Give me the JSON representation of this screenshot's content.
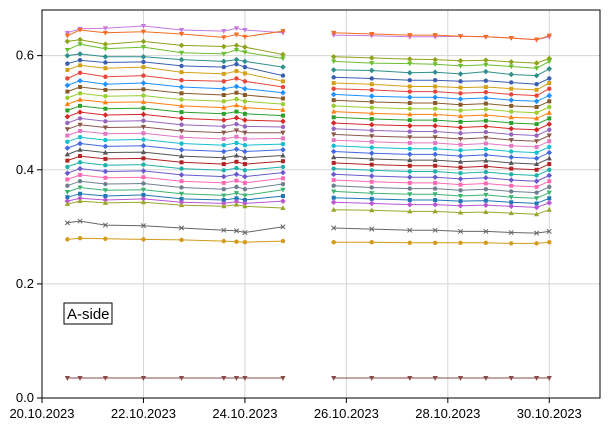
{
  "chart_data": {
    "type": "line",
    "title": "",
    "xlabel": "",
    "ylabel": "",
    "xlim": [
      "2023-10-20",
      "2023-10-31"
    ],
    "ylim": [
      0.0,
      0.68
    ],
    "grid": true,
    "x_ticks": [
      "20.10.2023",
      "22.10.2023",
      "24.10.2023",
      "26.10.2023",
      "28.10.2023",
      "30.10.2023"
    ],
    "y_ticks": [
      "0.0",
      "0.2",
      "0.4",
      "0.6"
    ],
    "annotation": "A-side",
    "x_dates": [
      "2023-10-20 12:00",
      "2023-10-20 18:00",
      "2023-10-21 06:00",
      "2023-10-22 00:00",
      "2023-10-22 18:00",
      "2023-10-23 14:00",
      "2023-10-23 20:00",
      "2023-10-24 00:00",
      "2023-10-24 18:00",
      "2023-10-25 18:00",
      "2023-10-26 12:00",
      "2023-10-27 06:00",
      "2023-10-27 18:00",
      "2023-10-28 06:00",
      "2023-10-28 18:00",
      "2023-10-29 06:00",
      "2023-10-29 18:00",
      "2023-10-30 00:00"
    ],
    "segments": [
      [
        0,
        8
      ],
      [
        9,
        17
      ]
    ],
    "series": [
      {
        "values": [
          0.64,
          0.647,
          0.648,
          0.652,
          0.645,
          0.643,
          0.648,
          0.645,
          0.64,
          0.636,
          0.635,
          0.633,
          0.633,
          0.634,
          0.633,
          0.631,
          0.628,
          0.633
        ]
      },
      {
        "values": [
          0.635,
          0.645,
          0.64,
          0.642,
          0.638,
          0.632,
          0.637,
          0.633,
          0.643,
          0.64,
          0.638,
          0.636,
          0.636,
          0.634,
          0.633,
          0.631,
          0.628,
          0.635
        ]
      },
      {
        "values": [
          0.625,
          0.628,
          0.62,
          0.625,
          0.618,
          0.616,
          0.618,
          0.615,
          0.602,
          0.598,
          0.596,
          0.594,
          0.593,
          0.591,
          0.592,
          0.589,
          0.587,
          0.595
        ]
      },
      {
        "values": [
          0.61,
          0.62,
          0.612,
          0.615,
          0.605,
          0.603,
          0.61,
          0.606,
          0.595,
          0.59,
          0.587,
          0.586,
          0.585,
          0.582,
          0.584,
          0.581,
          0.578,
          0.59
        ]
      },
      {
        "values": [
          0.6,
          0.603,
          0.598,
          0.598,
          0.593,
          0.59,
          0.593,
          0.59,
          0.58,
          0.575,
          0.574,
          0.57,
          0.571,
          0.568,
          0.572,
          0.567,
          0.565,
          0.577
        ]
      },
      {
        "values": [
          0.586,
          0.592,
          0.588,
          0.589,
          0.582,
          0.58,
          0.585,
          0.58,
          0.565,
          0.562,
          0.56,
          0.557,
          0.557,
          0.555,
          0.556,
          0.553,
          0.55,
          0.56
        ]
      },
      {
        "values": [
          0.575,
          0.583,
          0.578,
          0.58,
          0.571,
          0.568,
          0.573,
          0.569,
          0.555,
          0.552,
          0.55,
          0.546,
          0.546,
          0.544,
          0.545,
          0.542,
          0.54,
          0.552
        ]
      },
      {
        "values": [
          0.56,
          0.57,
          0.563,
          0.565,
          0.557,
          0.555,
          0.56,
          0.555,
          0.545,
          0.542,
          0.54,
          0.537,
          0.537,
          0.534,
          0.536,
          0.532,
          0.53,
          0.542
        ]
      },
      {
        "values": [
          0.548,
          0.556,
          0.55,
          0.552,
          0.545,
          0.542,
          0.546,
          0.542,
          0.535,
          0.532,
          0.529,
          0.527,
          0.527,
          0.524,
          0.526,
          0.522,
          0.52,
          0.53
        ]
      },
      {
        "values": [
          0.537,
          0.545,
          0.54,
          0.541,
          0.534,
          0.531,
          0.535,
          0.531,
          0.525,
          0.522,
          0.519,
          0.517,
          0.517,
          0.514,
          0.516,
          0.512,
          0.51,
          0.52
        ]
      },
      {
        "values": [
          0.526,
          0.534,
          0.529,
          0.53,
          0.523,
          0.52,
          0.524,
          0.52,
          0.515,
          0.512,
          0.509,
          0.507,
          0.507,
          0.504,
          0.506,
          0.502,
          0.5,
          0.51
        ]
      },
      {
        "values": [
          0.515,
          0.523,
          0.518,
          0.519,
          0.512,
          0.509,
          0.513,
          0.509,
          0.505,
          0.502,
          0.499,
          0.497,
          0.497,
          0.494,
          0.496,
          0.492,
          0.49,
          0.5
        ]
      },
      {
        "values": [
          0.504,
          0.512,
          0.507,
          0.508,
          0.501,
          0.498,
          0.502,
          0.498,
          0.495,
          0.492,
          0.489,
          0.487,
          0.487,
          0.484,
          0.486,
          0.482,
          0.48,
          0.49
        ]
      },
      {
        "values": [
          0.493,
          0.501,
          0.496,
          0.497,
          0.49,
          0.487,
          0.491,
          0.487,
          0.485,
          0.482,
          0.479,
          0.477,
          0.477,
          0.474,
          0.476,
          0.472,
          0.47,
          0.48
        ]
      },
      {
        "values": [
          0.482,
          0.49,
          0.485,
          0.486,
          0.479,
          0.476,
          0.48,
          0.476,
          0.475,
          0.472,
          0.469,
          0.467,
          0.467,
          0.464,
          0.466,
          0.462,
          0.46,
          0.47
        ]
      },
      {
        "values": [
          0.471,
          0.479,
          0.474,
          0.475,
          0.468,
          0.465,
          0.469,
          0.465,
          0.465,
          0.462,
          0.459,
          0.457,
          0.457,
          0.454,
          0.456,
          0.452,
          0.45,
          0.46
        ]
      },
      {
        "values": [
          0.46,
          0.468,
          0.463,
          0.464,
          0.457,
          0.454,
          0.458,
          0.454,
          0.455,
          0.452,
          0.449,
          0.447,
          0.447,
          0.444,
          0.446,
          0.442,
          0.44,
          0.45
        ]
      },
      {
        "values": [
          0.449,
          0.457,
          0.452,
          0.453,
          0.446,
          0.443,
          0.447,
          0.443,
          0.445,
          0.442,
          0.439,
          0.437,
          0.437,
          0.434,
          0.436,
          0.432,
          0.43,
          0.44
        ]
      },
      {
        "values": [
          0.438,
          0.446,
          0.441,
          0.442,
          0.435,
          0.432,
          0.436,
          0.432,
          0.435,
          0.432,
          0.429,
          0.427,
          0.427,
          0.424,
          0.426,
          0.422,
          0.42,
          0.43
        ]
      },
      {
        "values": [
          0.427,
          0.435,
          0.43,
          0.431,
          0.424,
          0.421,
          0.425,
          0.421,
          0.425,
          0.422,
          0.419,
          0.417,
          0.417,
          0.414,
          0.416,
          0.412,
          0.41,
          0.42
        ]
      },
      {
        "values": [
          0.416,
          0.424,
          0.419,
          0.42,
          0.413,
          0.41,
          0.414,
          0.41,
          0.415,
          0.412,
          0.409,
          0.407,
          0.407,
          0.404,
          0.406,
          0.402,
          0.4,
          0.41
        ]
      },
      {
        "values": [
          0.405,
          0.413,
          0.408,
          0.409,
          0.402,
          0.399,
          0.403,
          0.399,
          0.405,
          0.402,
          0.399,
          0.397,
          0.397,
          0.394,
          0.396,
          0.392,
          0.39,
          0.4
        ]
      },
      {
        "values": [
          0.394,
          0.402,
          0.397,
          0.398,
          0.391,
          0.388,
          0.392,
          0.388,
          0.395,
          0.392,
          0.389,
          0.387,
          0.387,
          0.384,
          0.386,
          0.382,
          0.38,
          0.39
        ]
      },
      {
        "values": [
          0.383,
          0.391,
          0.386,
          0.387,
          0.38,
          0.377,
          0.381,
          0.377,
          0.385,
          0.382,
          0.379,
          0.377,
          0.377,
          0.374,
          0.376,
          0.372,
          0.37,
          0.38
        ]
      },
      {
        "values": [
          0.372,
          0.38,
          0.375,
          0.376,
          0.369,
          0.366,
          0.37,
          0.366,
          0.375,
          0.372,
          0.369,
          0.367,
          0.367,
          0.364,
          0.366,
          0.362,
          0.36,
          0.37
        ]
      },
      {
        "values": [
          0.361,
          0.369,
          0.364,
          0.365,
          0.358,
          0.355,
          0.359,
          0.355,
          0.365,
          0.362,
          0.359,
          0.357,
          0.357,
          0.354,
          0.356,
          0.352,
          0.35,
          0.36
        ]
      },
      {
        "values": [
          0.352,
          0.358,
          0.354,
          0.356,
          0.349,
          0.347,
          0.35,
          0.347,
          0.354,
          0.351,
          0.349,
          0.347,
          0.347,
          0.345,
          0.346,
          0.343,
          0.341,
          0.35
        ]
      },
      {
        "values": [
          0.345,
          0.35,
          0.347,
          0.349,
          0.343,
          0.341,
          0.344,
          0.341,
          0.345,
          0.343,
          0.341,
          0.339,
          0.339,
          0.337,
          0.338,
          0.336,
          0.334,
          0.342
        ]
      },
      {
        "values": [
          0.34,
          0.345,
          0.342,
          0.343,
          0.338,
          0.336,
          0.339,
          0.336,
          0.333,
          0.33,
          0.329,
          0.327,
          0.327,
          0.325,
          0.326,
          0.324,
          0.322,
          0.33
        ]
      },
      {
        "values": [
          0.307,
          0.31,
          0.303,
          0.302,
          0.298,
          0.294,
          0.293,
          0.29,
          0.3,
          0.298,
          0.296,
          0.294,
          0.294,
          0.292,
          0.292,
          0.29,
          0.289,
          0.292
        ]
      },
      {
        "values": [
          0.278,
          0.28,
          0.279,
          0.278,
          0.277,
          0.275,
          0.274,
          0.273,
          0.275,
          0.273,
          0.273,
          0.272,
          0.272,
          0.272,
          0.272,
          0.271,
          0.271,
          0.273
        ]
      },
      {
        "values": [
          0.035,
          0.035,
          0.035,
          0.035,
          0.035,
          0.035,
          0.035,
          0.035,
          0.035,
          0.035,
          0.035,
          0.035,
          0.035,
          0.035,
          0.035,
          0.035,
          0.035,
          0.035
        ]
      }
    ],
    "colors": [
      "#c678dd",
      "#f36c21",
      "#8fa31b",
      "#6bbf2f",
      "#2f8f8a",
      "#3a5fb0",
      "#d4a017",
      "#e8453c",
      "#1e90ff",
      "#8b5a2b",
      "#9acd32",
      "#ff7f0e",
      "#2ca02c",
      "#d62728",
      "#9467bd",
      "#8c564b",
      "#e377c2",
      "#17becf",
      "#4169e1",
      "#555555",
      "#b22222",
      "#20b2aa",
      "#6a5acd",
      "#ff69b4",
      "#708090",
      "#3cb371",
      "#1f77b4",
      "#ba55d3",
      "#9aa52b",
      "#666666",
      "#d39b1a",
      "#8b4a4a"
    ],
    "markers": [
      "tri-down",
      "tri-down",
      "diamond",
      "tri-down",
      "diamond",
      "circle",
      "square",
      "circle",
      "diamond",
      "square",
      "circle",
      "tri-up",
      "square",
      "diamond",
      "circle",
      "tri-down",
      "square",
      "circle",
      "diamond",
      "tri-up",
      "square",
      "circle",
      "diamond",
      "square",
      "circle",
      "tri-down",
      "square",
      "diamond",
      "tri-up",
      "x",
      "circle",
      "tri-down"
    ]
  }
}
